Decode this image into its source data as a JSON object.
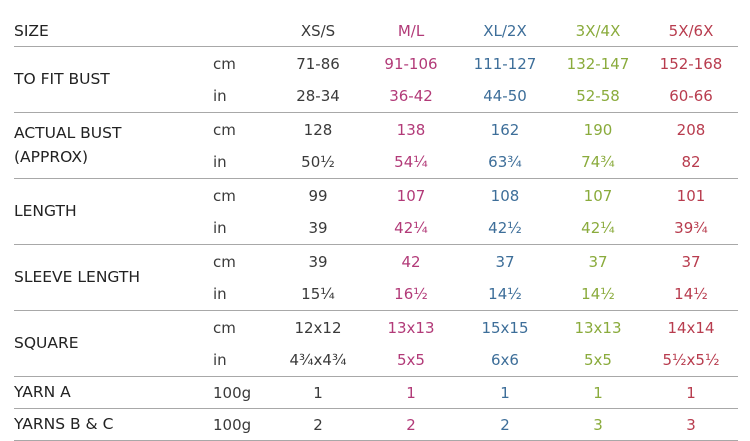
{
  "table": {
    "header": {
      "label": "SIZE",
      "sizes": [
        "XS/S",
        "M/L",
        "XL/2X",
        "3X/4X",
        "5X/6X"
      ]
    },
    "column_colors": [
      "#3a3a3a",
      "#b23a78",
      "#3d6e99",
      "#8aab3c",
      "#b83c4e"
    ],
    "rows": [
      {
        "label": [
          "TO FIT BUST"
        ],
        "lines": [
          {
            "unit": "cm",
            "values": [
              "71-86",
              "91-106",
              "111-127",
              "132-147",
              "152-168"
            ]
          },
          {
            "unit": "in",
            "values": [
              "28-34",
              "36-42",
              "44-50",
              "52-58",
              "60-66"
            ]
          }
        ]
      },
      {
        "label": [
          "ACTUAL BUST",
          "(APPROX)"
        ],
        "lines": [
          {
            "unit": "cm",
            "values": [
              "128",
              "138",
              "162",
              "190",
              "208"
            ]
          },
          {
            "unit": "in",
            "values": [
              "50½",
              "54¼",
              "63¾",
              "74¾",
              "82"
            ]
          }
        ]
      },
      {
        "label": [
          "LENGTH"
        ],
        "lines": [
          {
            "unit": "cm",
            "values": [
              "99",
              "107",
              "108",
              "107",
              "101"
            ]
          },
          {
            "unit": "in",
            "values": [
              "39",
              "42¼",
              "42½",
              "42¼",
              "39¾"
            ]
          }
        ]
      },
      {
        "label": [
          "SLEEVE LENGTH"
        ],
        "lines": [
          {
            "unit": "cm",
            "values": [
              "39",
              "42",
              "37",
              "37",
              "37"
            ]
          },
          {
            "unit": "in",
            "values": [
              "15¼",
              "16½",
              "14½",
              "14½",
              "14½"
            ]
          }
        ]
      },
      {
        "label": [
          "SQUARE"
        ],
        "lines": [
          {
            "unit": "cm",
            "values": [
              "12x12",
              "13x13",
              "15x15",
              "13x13",
              "14x14"
            ]
          },
          {
            "unit": "in",
            "values": [
              "4¾x4¾",
              "5x5",
              "6x6",
              "5x5",
              "5½x5½"
            ]
          }
        ]
      },
      {
        "label": [
          "YARN A"
        ],
        "lines": [
          {
            "unit": "100g",
            "values": [
              "1",
              "1",
              "1",
              "1",
              "1"
            ]
          }
        ]
      },
      {
        "label": [
          "YARNS B & C"
        ],
        "lines": [
          {
            "unit": "100g",
            "values": [
              "2",
              "2",
              "2",
              "3",
              "3"
            ]
          }
        ]
      }
    ]
  }
}
